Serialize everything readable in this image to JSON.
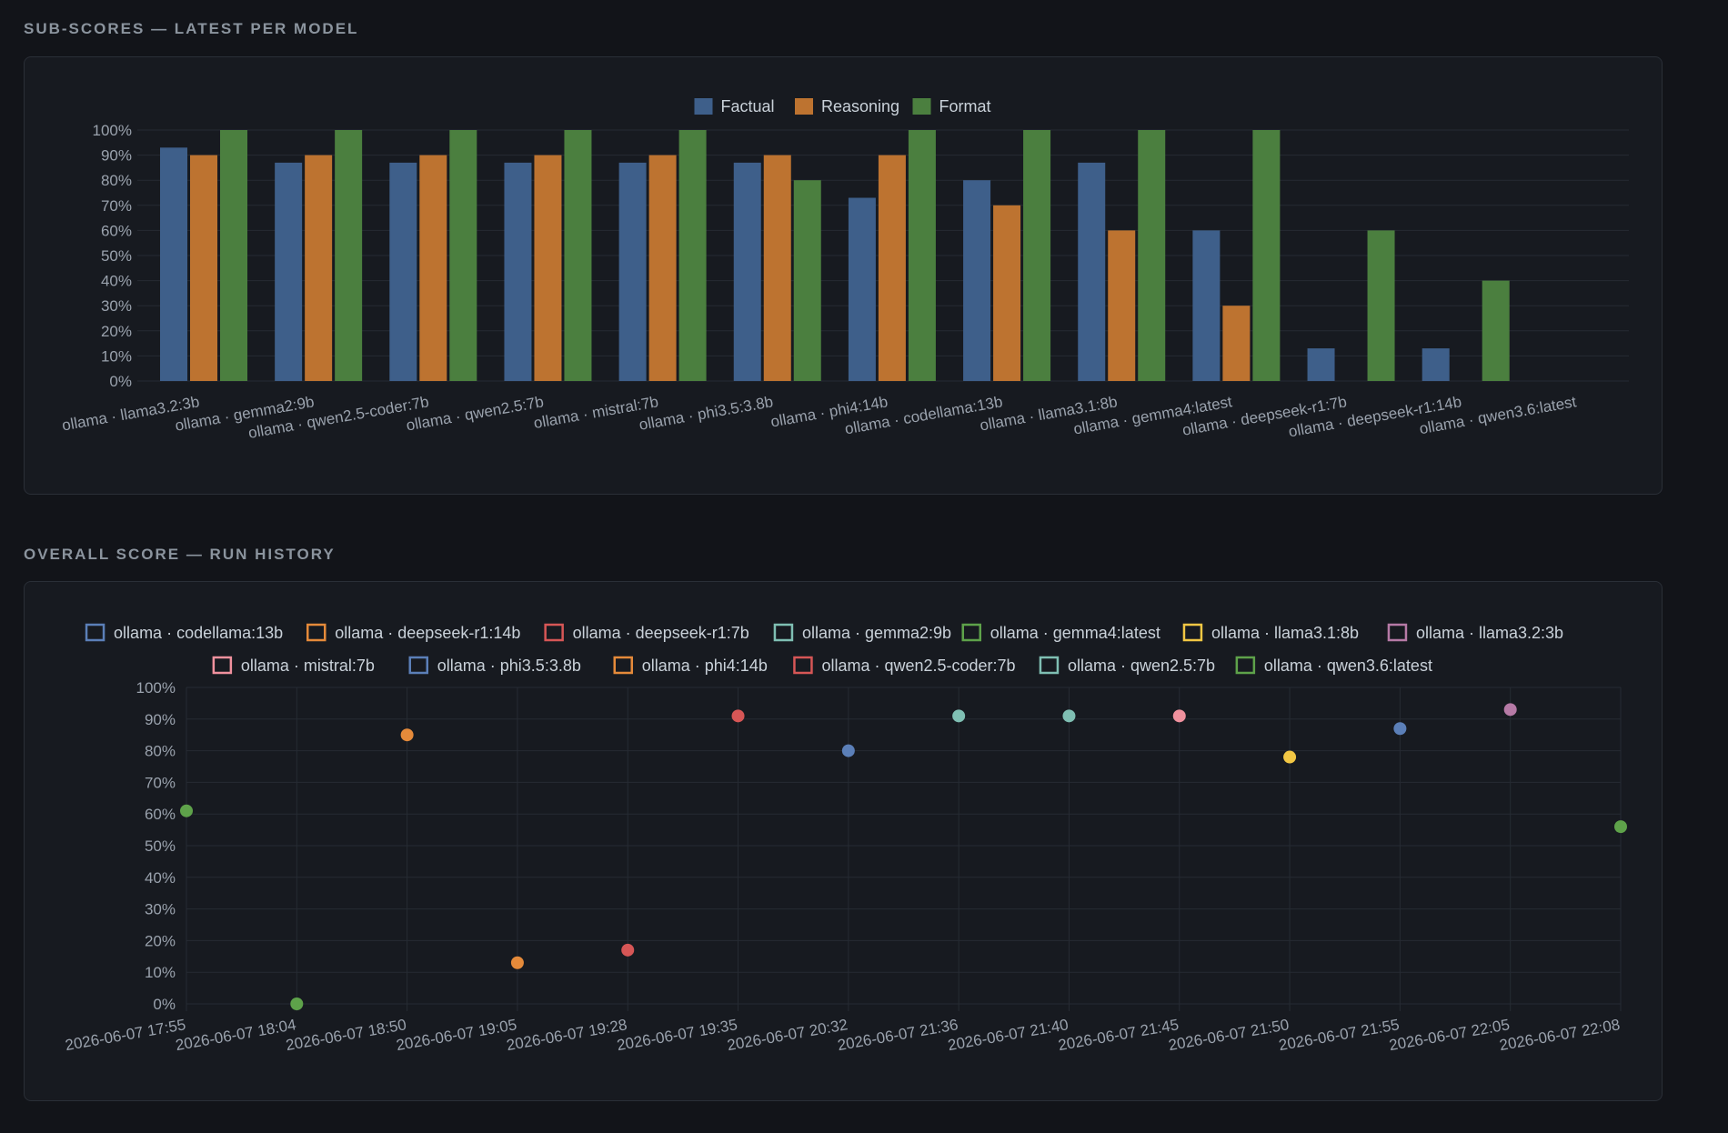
{
  "sections": {
    "subscores_title": "SUB-SCORES — LATEST PER MODEL",
    "history_title": "OVERALL SCORE — RUN HISTORY"
  },
  "colors": {
    "factual": "#3e5f8a",
    "reasoning": "#bd7330",
    "format": "#4b7f3f",
    "grid": "#262b33",
    "tick_text": "#9aa2ad"
  },
  "chart_data": [
    {
      "type": "bar",
      "title": "",
      "legend_position": "top-center",
      "grid": true,
      "ylim": [
        0,
        100
      ],
      "yticks": [
        "0%",
        "10%",
        "20%",
        "30%",
        "40%",
        "50%",
        "60%",
        "70%",
        "80%",
        "90%",
        "100%"
      ],
      "categories": [
        "ollama · llama3.2:3b",
        "ollama · gemma2:9b",
        "ollama · qwen2.5-coder:7b",
        "ollama · qwen2.5:7b",
        "ollama · mistral:7b",
        "ollama · phi3.5:3.8b",
        "ollama · phi4:14b",
        "ollama · codellama:13b",
        "ollama · llama3.1:8b",
        "ollama · gemma4:latest",
        "ollama · deepseek-r1:7b",
        "ollama · deepseek-r1:14b",
        "ollama · qwen3.6:latest"
      ],
      "series": [
        {
          "name": "Factual",
          "color": "#3e5f8a",
          "values": [
            93,
            87,
            87,
            87,
            87,
            87,
            73,
            80,
            87,
            60,
            13,
            13,
            0
          ]
        },
        {
          "name": "Reasoning",
          "color": "#bd7330",
          "values": [
            90,
            90,
            90,
            90,
            90,
            90,
            90,
            70,
            60,
            30,
            0,
            0,
            0
          ]
        },
        {
          "name": "Format",
          "color": "#4b7f3f",
          "values": [
            100,
            100,
            100,
            100,
            100,
            80,
            100,
            100,
            100,
            100,
            60,
            40,
            0
          ]
        }
      ]
    },
    {
      "type": "scatter",
      "title": "",
      "legend_position": "top-center",
      "grid": true,
      "ylim": [
        0,
        100
      ],
      "yticks": [
        "0%",
        "10%",
        "20%",
        "30%",
        "40%",
        "50%",
        "60%",
        "70%",
        "80%",
        "90%",
        "100%"
      ],
      "x": [
        "2026-06-07 17:55",
        "2026-06-07 18:04",
        "2026-06-07 18:50",
        "2026-06-07 19:05",
        "2026-06-07 19:28",
        "2026-06-07 19:35",
        "2026-06-07 20:32",
        "2026-06-07 21:36",
        "2026-06-07 21:40",
        "2026-06-07 21:45",
        "2026-06-07 21:50",
        "2026-06-07 21:55",
        "2026-06-07 22:05",
        "2026-06-07 22:08"
      ],
      "legend_rows": [
        [
          "ollama · codellama:13b",
          "ollama · deepseek-r1:14b",
          "ollama · deepseek-r1:7b",
          "ollama · gemma2:9b",
          "ollama · gemma4:latest",
          "ollama · llama3.1:8b",
          "ollama · llama3.2:3b"
        ],
        [
          "ollama · mistral:7b",
          "ollama · phi3.5:3.8b",
          "ollama · phi4:14b",
          "ollama · qwen2.5-coder:7b",
          "ollama · qwen2.5:7b",
          "ollama · qwen3.6:latest"
        ]
      ],
      "series": [
        {
          "name": "ollama · codellama:13b",
          "color": "#5b7fb8",
          "points": [
            [
              "2026-06-07 20:32",
              80
            ]
          ]
        },
        {
          "name": "ollama · deepseek-r1:14b",
          "color": "#e58a3a",
          "points": [
            [
              "2026-06-07 19:05",
              13
            ]
          ]
        },
        {
          "name": "ollama · deepseek-r1:7b",
          "color": "#d65656",
          "points": [
            [
              "2026-06-07 19:28",
              17
            ]
          ]
        },
        {
          "name": "ollama · gemma2:9b",
          "color": "#7fbfb3",
          "points": [
            [
              "2026-06-07 21:36",
              91
            ]
          ]
        },
        {
          "name": "ollama · gemma4:latest",
          "color": "#5ea24a",
          "points": [
            [
              "2026-06-07 18:04",
              0
            ]
          ]
        },
        {
          "name": "ollama · llama3.1:8b",
          "color": "#f2c744",
          "points": [
            [
              "2026-06-07 21:50",
              78
            ]
          ]
        },
        {
          "name": "ollama · llama3.2:3b",
          "color": "#b67aa6",
          "points": [
            [
              "2026-06-07 22:05",
              93
            ]
          ]
        },
        {
          "name": "ollama · mistral:7b",
          "color": "#f0919e",
          "points": [
            [
              "2026-06-07 21:45",
              91
            ]
          ]
        },
        {
          "name": "ollama · phi3.5:3.8b",
          "color": "#5b7fb8",
          "points": [
            [
              "2026-06-07 21:55",
              87
            ]
          ]
        },
        {
          "name": "ollama · phi4:14b",
          "color": "#e58a3a",
          "points": [
            [
              "2026-06-07 18:50",
              85
            ]
          ]
        },
        {
          "name": "ollama · qwen2.5-coder:7b",
          "color": "#d65656",
          "points": [
            [
              "2026-06-07 19:35",
              91
            ]
          ]
        },
        {
          "name": "ollama · qwen2.5:7b",
          "color": "#7fbfb3",
          "points": [
            [
              "2026-06-07 21:40",
              91
            ]
          ]
        },
        {
          "name": "ollama · qwen3.6:latest",
          "color": "#5ea24a",
          "points": [
            [
              "2026-06-07 17:55",
              61
            ],
            [
              "2026-06-07 22:08",
              56
            ]
          ]
        }
      ]
    }
  ]
}
